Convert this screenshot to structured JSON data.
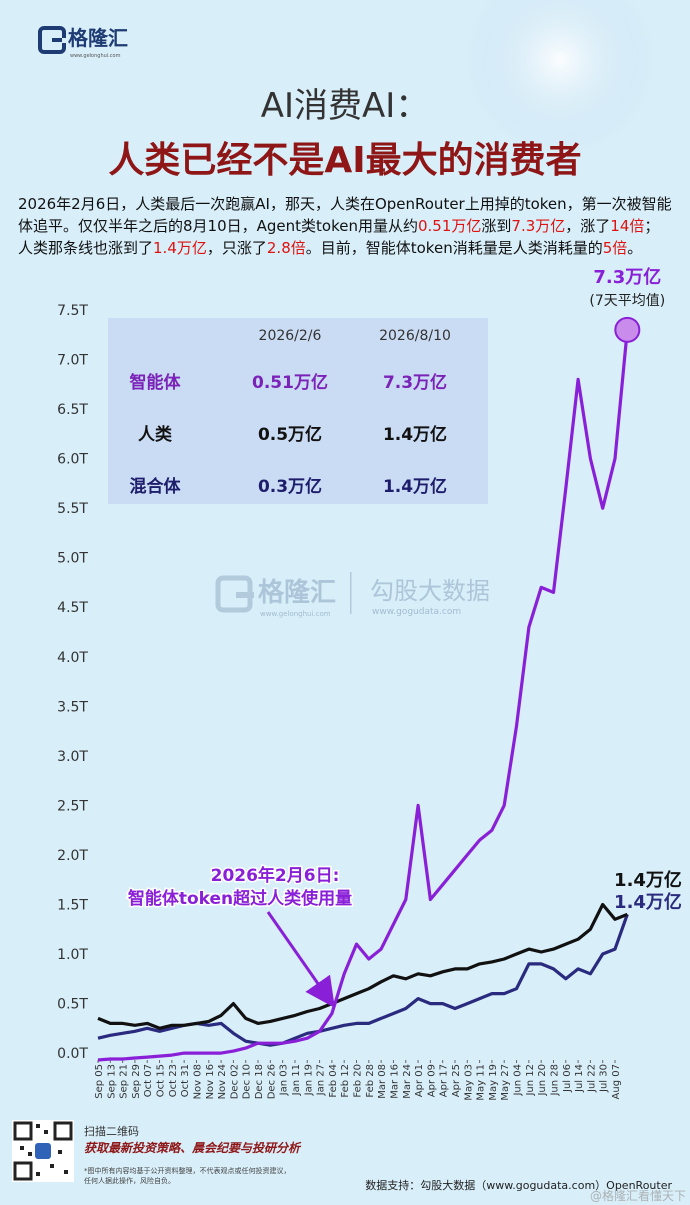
{
  "header": {
    "brand": "格隆汇",
    "brand_url": "www.gelonghui.com"
  },
  "title": "AI消费AI：",
  "subtitle": "人类已经不是AI最大的消费者",
  "intro": [
    {
      "text": "2026年2月6日，人类最后一次跑赢AI，那天，人类在OpenRouter上用掉的token，第一次被智能体追平。仅仅半年之后的8月10日，Agent类token用量从约"
    },
    {
      "text": "0.51万亿",
      "color": "#e0120f"
    },
    {
      "text": "涨到"
    },
    {
      "text": "7.3万亿",
      "color": "#e0120f"
    },
    {
      "text": "，涨了"
    },
    {
      "text": "14倍",
      "color": "#e0120f"
    },
    {
      "text": "；人类那条线也涨到了"
    },
    {
      "text": "1.4万亿",
      "color": "#e0120f"
    },
    {
      "text": "，只涨了"
    },
    {
      "text": "2.8倍",
      "color": "#e0120f"
    },
    {
      "text": "。目前，智能体token消耗量是人类消耗量的"
    },
    {
      "text": "5倍",
      "color": "#e0120f"
    },
    {
      "text": "。"
    }
  ],
  "table": {
    "columns": [
      "2026/2/6",
      "2026/8/10"
    ],
    "rows": [
      {
        "label": "智能体",
        "color": "#7b22b8",
        "cells": [
          "0.51万亿",
          "7.3万亿"
        ]
      },
      {
        "label": "人类",
        "color": "#111111",
        "cells": [
          "0.5万亿",
          "1.4万亿"
        ]
      },
      {
        "label": "混合体",
        "color": "#1d1d6b",
        "cells": [
          "0.3万亿",
          "1.4万亿"
        ]
      }
    ]
  },
  "chart_data": {
    "type": "line",
    "categories": [
      "Sep 05",
      "Sep 13",
      "Sep 21",
      "Sep 29",
      "Oct 07",
      "Oct 15",
      "Oct 23",
      "Oct 31",
      "Nov 08",
      "Nov 16",
      "Nov 24",
      "Dec 02",
      "Dec 10",
      "Dec 18",
      "Dec 26",
      "Jan 03",
      "Jan 11",
      "Jan 19",
      "Jan 27",
      "Feb 04",
      "Feb 12",
      "Feb 20",
      "Feb 28",
      "Mar 08",
      "Mar 16",
      "Mar 24",
      "Apr 01",
      "Apr 09",
      "Apr 17",
      "Apr 25",
      "May 03",
      "May 11",
      "May 19",
      "May 27",
      "Jun 04",
      "Jun 12",
      "Jun 20",
      "Jun 28",
      "Jul 06",
      "Jul 14",
      "Jul 22",
      "Jul 30",
      "Aug 07",
      null
    ],
    "series": [
      {
        "color": "#2a2a7e",
        "values": [
          0.15,
          0.18,
          0.2,
          0.22,
          0.25,
          0.22,
          0.25,
          0.28,
          0.3,
          0.28,
          0.3,
          0.2,
          0.12,
          0.1,
          0.08,
          0.1,
          0.15,
          0.2,
          0.22,
          0.25,
          0.28,
          0.3,
          0.3,
          0.35,
          0.4,
          0.45,
          0.55,
          0.5,
          0.5,
          0.45,
          0.5,
          0.55,
          0.6,
          0.6,
          0.65,
          0.9,
          0.9,
          0.85,
          0.75,
          0.85,
          0.8,
          1.0,
          1.05,
          1.4
        ],
        "value_labels": [
          null,
          null,
          null,
          null,
          null,
          null,
          null,
          null,
          null,
          null,
          null,
          null,
          null,
          null,
          null,
          null,
          null,
          null,
          null,
          null,
          null,
          null,
          null,
          null,
          null,
          null,
          null,
          null,
          null,
          null,
          null,
          null,
          null,
          null,
          null,
          null,
          null,
          null,
          null,
          null,
          null,
          null,
          null,
          "1.4万亿"
        ]
      },
      {
        "color": "#111111",
        "values": [
          0.35,
          0.3,
          0.3,
          0.28,
          0.3,
          0.25,
          0.28,
          0.28,
          0.3,
          0.32,
          0.38,
          0.5,
          0.35,
          0.3,
          0.32,
          0.35,
          0.38,
          0.42,
          0.45,
          0.5,
          0.55,
          0.6,
          0.65,
          0.72,
          0.78,
          0.75,
          0.8,
          0.78,
          0.82,
          0.85,
          0.85,
          0.9,
          0.92,
          0.95,
          1.0,
          1.05,
          1.02,
          1.05,
          1.1,
          1.15,
          1.25,
          1.5,
          1.35,
          1.4
        ],
        "value_labels": [
          null,
          null,
          null,
          null,
          null,
          null,
          null,
          null,
          null,
          null,
          null,
          null,
          null,
          null,
          null,
          null,
          null,
          null,
          null,
          null,
          null,
          null,
          null,
          null,
          null,
          null,
          null,
          null,
          null,
          null,
          null,
          null,
          null,
          null,
          null,
          null,
          null,
          null,
          null,
          null,
          null,
          null,
          null,
          "1.4万亿"
        ]
      },
      {
        "color": "#8a1fd8",
        "values": [
          -0.07,
          -0.06,
          -0.06,
          -0.05,
          -0.04,
          -0.03,
          -0.02,
          0.0,
          0.0,
          0.0,
          0.0,
          0.02,
          0.05,
          0.1,
          0.1,
          0.1,
          0.12,
          0.15,
          0.22,
          0.4,
          0.8,
          1.1,
          0.95,
          1.05,
          1.3,
          1.55,
          2.5,
          1.55,
          1.7,
          1.85,
          2.0,
          2.15,
          2.25,
          2.5,
          3.3,
          4.3,
          4.7,
          4.65,
          5.7,
          6.8,
          6.0,
          5.5,
          6.0,
          7.3
        ],
        "value_labels": [
          null,
          null,
          null,
          null,
          null,
          null,
          null,
          null,
          null,
          null,
          null,
          null,
          null,
          null,
          null,
          null,
          null,
          null,
          null,
          null,
          null,
          null,
          null,
          null,
          null,
          null,
          null,
          null,
          null,
          null,
          null,
          null,
          null,
          null,
          null,
          null,
          null,
          null,
          null,
          null,
          null,
          null,
          null,
          "7.3万亿"
        ]
      }
    ],
    "ylim": [
      -0.1,
      7.5
    ],
    "yticks": [
      {
        "value": 0,
        "label": "0.0T"
      },
      {
        "value": 0.5,
        "label": "0.5T"
      },
      {
        "value": 1,
        "label": "1.0T"
      },
      {
        "value": 1.5,
        "label": "1.5T"
      },
      {
        "value": 2,
        "label": "2.0T"
      },
      {
        "value": 2.5,
        "label": "2.5T"
      },
      {
        "value": 3,
        "label": "3.0T"
      },
      {
        "value": 3.5,
        "label": "3.5T"
      },
      {
        "value": 4,
        "label": "4.0T"
      },
      {
        "value": 4.5,
        "label": "4.5T"
      },
      {
        "value": 5,
        "label": "5.0T"
      },
      {
        "value": 5.5,
        "label": "5.5T"
      },
      {
        "value": 6,
        "label": "6.0T"
      },
      {
        "value": 6.5,
        "label": "6.5T"
      },
      {
        "value": 7,
        "label": "7.0T"
      },
      {
        "value": 7.5,
        "label": "7.5T"
      }
    ],
    "grid": false,
    "note": "(7天平均值)",
    "callout": [
      "2026年2月6日:",
      "智能体token超过人类使用量"
    ]
  },
  "watermark": {
    "brand": "格隆汇",
    "brand_url": "www.gelonghui.com",
    "partner": "勾股大数据",
    "partner_url": "www.gogudata.com"
  },
  "footer": {
    "scan": "扫描二维码",
    "promo": "获取最新投资策略、晨会纪要与投研分析",
    "disclaimer": [
      "*图中所有内容均基于公开资料整理，不代表观点或任何投资建议，",
      "任何人据此操作，风险自负。"
    ],
    "source": "数据支持：勾股大数据（www.gogudata.com）OpenRouter",
    "weibo": "@格隆汇看懂天下"
  }
}
